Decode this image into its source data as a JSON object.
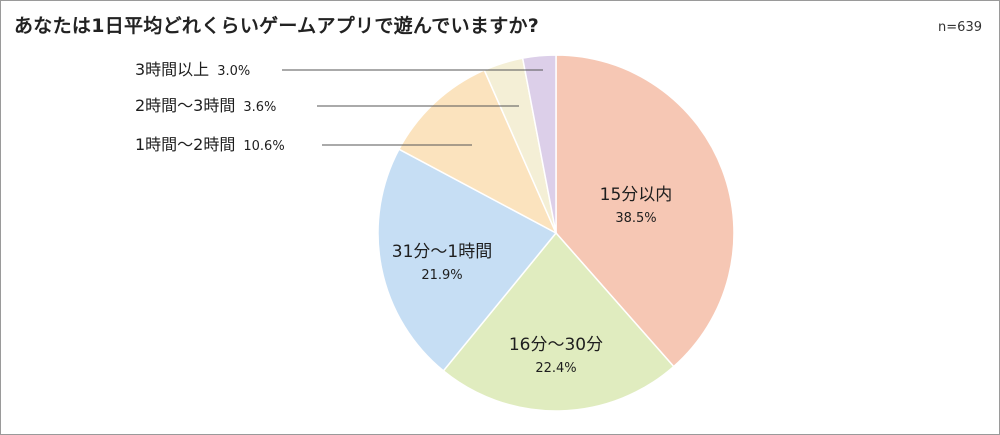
{
  "chart_data": {
    "type": "pie",
    "title": "あなたは1日平均どれくらいゲームアプリで遊んでいますか?",
    "sample_size": "n=639",
    "start_angle_deg": 0,
    "direction": "clockwise",
    "slices": [
      {
        "label": "15分以内",
        "pct_label": "38.5%",
        "value": 38.5,
        "color": "#f6c7b4",
        "label_pos": "inside"
      },
      {
        "label": "16分〜30分",
        "pct_label": "22.4%",
        "value": 22.4,
        "color": "#e0ecbf",
        "label_pos": "inside"
      },
      {
        "label": "31分〜1時間",
        "pct_label": "21.9%",
        "value": 21.9,
        "color": "#c6def4",
        "label_pos": "inside"
      },
      {
        "label": "1時間〜2時間",
        "pct_label": "10.6%",
        "value": 10.6,
        "color": "#fbe3be",
        "label_pos": "outside"
      },
      {
        "label": "2時間〜3時間",
        "pct_label": "3.6%",
        "value": 3.6,
        "color": "#f4efd6",
        "label_pos": "outside"
      },
      {
        "label": "3時間以上",
        "pct_label": "3.0%",
        "value": 3.0,
        "color": "#dccfe9",
        "label_pos": "outside"
      }
    ]
  }
}
